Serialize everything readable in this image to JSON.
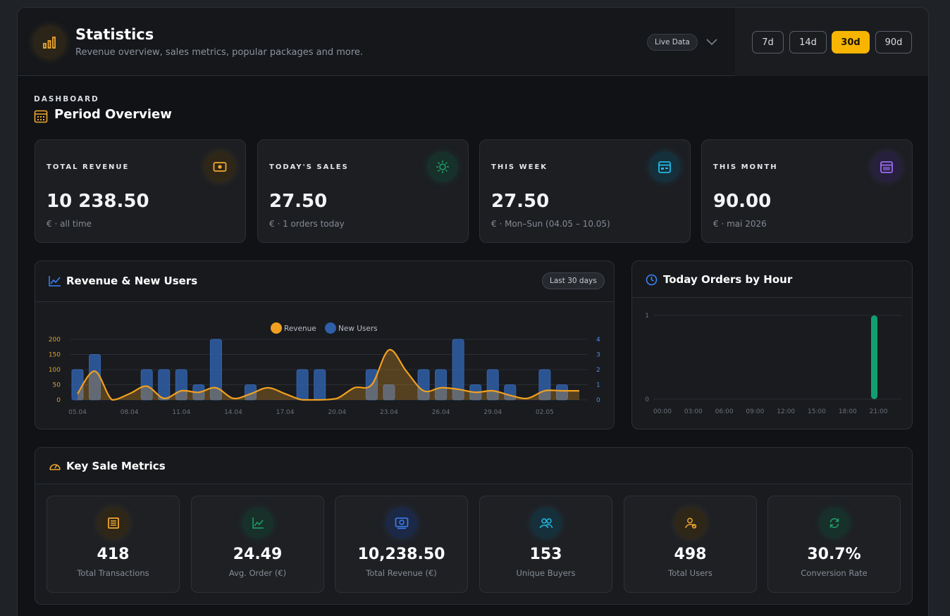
{
  "header": {
    "title": "Statistics",
    "subtitle": "Revenue overview, sales metrics, popular packages and more.",
    "live_label": "Live Data",
    "ranges": [
      {
        "label": "7d",
        "active": false
      },
      {
        "label": "14d",
        "active": false
      },
      {
        "label": "30d",
        "active": true
      },
      {
        "label": "90d",
        "active": false
      }
    ],
    "accent": "#f7b500"
  },
  "section": {
    "eyebrow": "DASHBOARD",
    "title": "Period Overview"
  },
  "stats": [
    {
      "label": "TOTAL REVENUE",
      "value": "10 238.50",
      "sub": "€  ·  all time",
      "icon": "cash-icon",
      "color": "#f0a830"
    },
    {
      "label": "TODAY'S SALES",
      "value": "27.50",
      "sub": "€  ·  1 orders today",
      "icon": "sun-icon",
      "color": "#22a06b"
    },
    {
      "label": "THIS WEEK",
      "value": "27.50",
      "sub": "€  ·  Mon–Sun (04.05 – 10.05)",
      "icon": "calendar-week-icon",
      "color": "#22b8e6"
    },
    {
      "label": "THIS MONTH",
      "value": "90.00",
      "sub": "€  ·  mai 2026",
      "icon": "calendar-month-icon",
      "color": "#9b6cf0"
    }
  ],
  "revenue_panel": {
    "title": "Revenue & New Users",
    "pill": "Last 30 days"
  },
  "orders_panel": {
    "title": "Today Orders by Hour"
  },
  "metrics_panel": {
    "title": "Key Sale Metrics",
    "items": [
      {
        "value": "418",
        "label": "Total Transactions",
        "icon": "receipt-icon",
        "color": "#f0a830"
      },
      {
        "value": "24.49",
        "label": "Avg. Order (€)",
        "icon": "trend-icon",
        "color": "#22a06b"
      },
      {
        "value": "10,238.50",
        "label": "Total Revenue (€)",
        "icon": "money-icon",
        "color": "#3b82f6"
      },
      {
        "value": "153",
        "label": "Unique Buyers",
        "icon": "users-icon",
        "color": "#22b8e6"
      },
      {
        "value": "498",
        "label": "Total Users",
        "icon": "user-check-icon",
        "color": "#f0a830"
      },
      {
        "value": "30.7%",
        "label": "Conversion Rate",
        "icon": "refresh-icon",
        "color": "#22a06b"
      }
    ]
  },
  "chart_data": [
    {
      "type": "bar+line",
      "legend": [
        "Revenue",
        "New Users"
      ],
      "legend_placement": "top",
      "x": [
        "05.04",
        "06.04",
        "07.04",
        "08.04",
        "09.04",
        "10.04",
        "11.04",
        "12.04",
        "13.04",
        "14.04",
        "15.04",
        "16.04",
        "17.04",
        "18.04",
        "19.04",
        "20.04",
        "21.04",
        "22.04",
        "23.04",
        "24.04",
        "25.04",
        "26.04",
        "27.04",
        "28.04",
        "29.04",
        "30.04",
        "01.05",
        "02.05",
        "03.05",
        "04.05"
      ],
      "x_tick_labels": [
        "05.04",
        "08.04",
        "11.04",
        "14.04",
        "17.04",
        "20.04",
        "23.04",
        "26.04",
        "29.04",
        "02.05"
      ],
      "series": [
        {
          "name": "New Users",
          "axis": "right",
          "kind": "bar",
          "color": "#2f5fa8",
          "values": [
            2,
            3,
            0,
            0,
            2,
            2,
            2,
            1,
            4,
            0,
            1,
            0,
            0,
            2,
            2,
            0,
            0,
            2,
            1,
            0,
            2,
            2,
            4,
            1,
            2,
            1,
            0,
            2,
            1,
            0
          ]
        },
        {
          "name": "Revenue",
          "axis": "left",
          "kind": "area-line",
          "color": "#f0a020",
          "values": [
            20,
            95,
            0,
            20,
            45,
            5,
            30,
            25,
            40,
            5,
            20,
            40,
            20,
            0,
            0,
            5,
            40,
            50,
            165,
            95,
            30,
            40,
            35,
            25,
            30,
            15,
            5,
            30,
            30,
            30
          ]
        }
      ],
      "y_left": {
        "ticks": [
          0,
          50,
          100,
          150,
          200
        ],
        "range": [
          0,
          200
        ]
      },
      "y_right": {
        "ticks": [
          0,
          1,
          2,
          3,
          4
        ],
        "range": [
          0,
          4
        ]
      },
      "grid": true
    },
    {
      "type": "bar",
      "x_tick_labels": [
        "00:00",
        "03:00",
        "06:00",
        "09:00",
        "12:00",
        "15:00",
        "18:00",
        "21:00"
      ],
      "categories": [
        "00",
        "01",
        "02",
        "03",
        "04",
        "05",
        "06",
        "07",
        "08",
        "09",
        "10",
        "11",
        "12",
        "13",
        "14",
        "15",
        "16",
        "17",
        "18",
        "19",
        "20",
        "21",
        "22",
        "23"
      ],
      "values": [
        0,
        0,
        0,
        0,
        0,
        0,
        0,
        0,
        0,
        0,
        0,
        0,
        0,
        0,
        0,
        0,
        0,
        0,
        0,
        0,
        1,
        0,
        0,
        0
      ],
      "y_ticks": [
        0,
        1
      ],
      "ylim": [
        0,
        1
      ],
      "color": "#10a070",
      "grid": true
    }
  ]
}
